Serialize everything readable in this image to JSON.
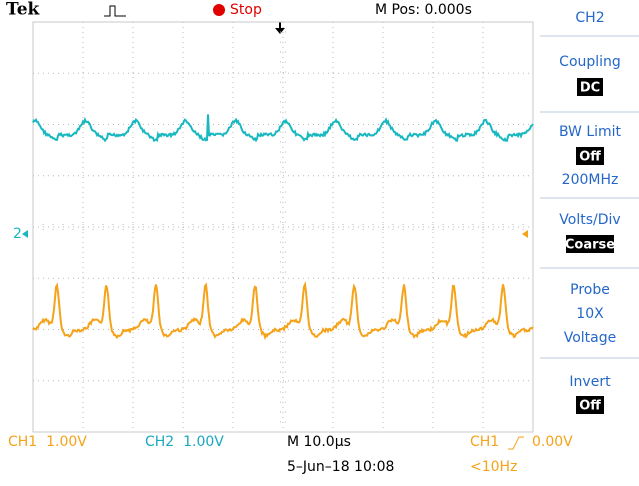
{
  "header": {
    "brand": "Tek",
    "status": "Stop",
    "position": "M Pos: 0.000s"
  },
  "menu": {
    "title": "CH2",
    "items": [
      {
        "label": "Coupling",
        "value": "DC"
      },
      {
        "label": "BW Limit",
        "value": "Off",
        "note": "200MHz"
      },
      {
        "label": "Volts/Div",
        "value": "Coarse"
      },
      {
        "label": "Probe",
        "lines": [
          "10X",
          "Voltage"
        ]
      },
      {
        "label": "Invert",
        "value": "Off"
      }
    ]
  },
  "markers": {
    "ch2": "2"
  },
  "footer": {
    "ch1": "CH1  1.00V",
    "ch2": "CH2  1.00V",
    "timebase": "M 10.0µs",
    "trigger_source": "CH1",
    "trigger_level": "0.00V",
    "date": "5–Jun–18 10:08",
    "frequency": "<10Hz"
  }
}
